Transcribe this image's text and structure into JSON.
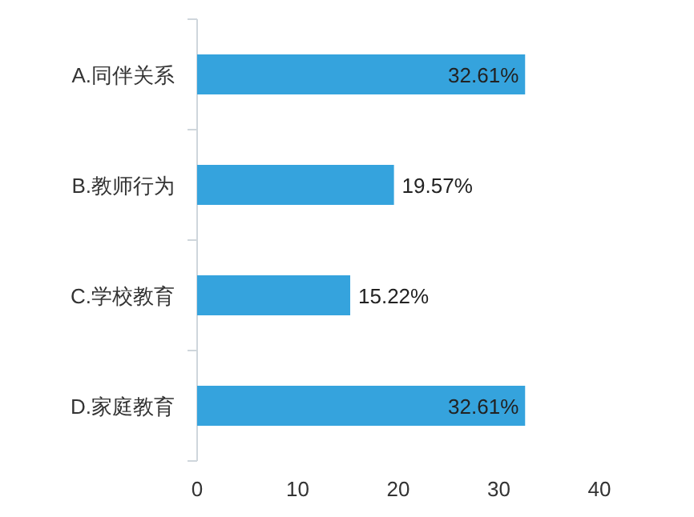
{
  "chart_data": {
    "type": "bar",
    "orientation": "horizontal",
    "categories": [
      "A.同伴关系",
      "B.教师行为",
      "C.学校教育",
      "D.家庭教育"
    ],
    "values": [
      32.61,
      19.57,
      15.22,
      32.61
    ],
    "value_labels": [
      "32.61%",
      "19.57%",
      "15.22%",
      "32.61%"
    ],
    "color": "#35a3dd",
    "xlim": [
      0,
      40
    ],
    "xticks": [
      0,
      10,
      20,
      30,
      40
    ]
  }
}
